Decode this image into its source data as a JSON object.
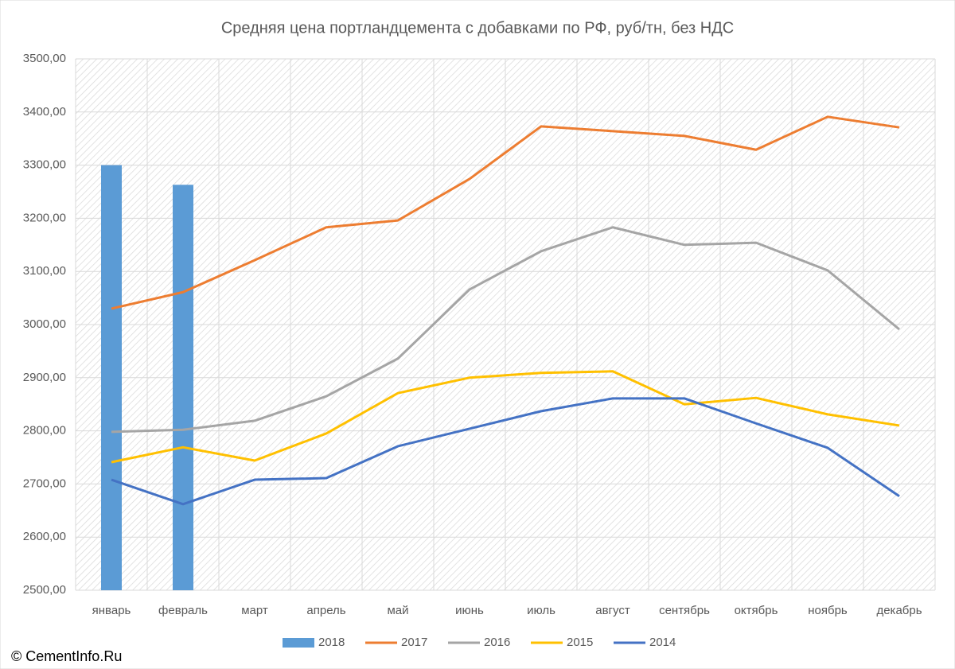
{
  "chart_data": {
    "type": "line",
    "title": "Средняя цена портландцемента с добавками по РФ, руб/тн, без НДС",
    "source": "© CementInfo.Ru",
    "categories": [
      "январь",
      "февраль",
      "март",
      "апрель",
      "май",
      "июнь",
      "июль",
      "август",
      "сентябрь",
      "октябрь",
      "ноябрь",
      "декабрь"
    ],
    "series": [
      {
        "name": "2018",
        "type": "bar",
        "color": "#5b9bd5",
        "values": [
          3300,
          3263,
          null,
          null,
          null,
          null,
          null,
          null,
          null,
          null,
          null,
          null
        ]
      },
      {
        "name": "2017",
        "color": "#ed7d31",
        "values": [
          3030,
          3061,
          3121,
          3183,
          3196,
          3274,
          3373,
          3364,
          3355,
          3329,
          3391,
          3371
        ]
      },
      {
        "name": "2016",
        "color": "#a5a5a5",
        "values": [
          2798,
          2802,
          2819,
          2865,
          2936,
          3066,
          3138,
          3183,
          3150,
          3154,
          3102,
          2991
        ]
      },
      {
        "name": "2015",
        "color": "#ffc000",
        "values": [
          2741,
          2769,
          2744,
          2795,
          2871,
          2900,
          2909,
          2912,
          2850,
          2862,
          2831,
          2810
        ]
      },
      {
        "name": "2014",
        "color": "#4472c4",
        "values": [
          2708,
          2662,
          2708,
          2711,
          2771,
          2804,
          2837,
          2861,
          2861,
          2814,
          2768,
          2677
        ]
      }
    ],
    "ylim": [
      2500,
      3500
    ],
    "yticks": [
      {
        "value": 2500,
        "label": "2500,00"
      },
      {
        "value": 2600,
        "label": "2600,00"
      },
      {
        "value": 2700,
        "label": "2700,00"
      },
      {
        "value": 2800,
        "label": "2800,00"
      },
      {
        "value": 2900,
        "label": "2900,00"
      },
      {
        "value": 3000,
        "label": "3000,00"
      },
      {
        "value": 3100,
        "label": "3100,00"
      },
      {
        "value": 3200,
        "label": "3200,00"
      },
      {
        "value": 3300,
        "label": "3300,00"
      },
      {
        "value": 3400,
        "label": "3400,00"
      },
      {
        "value": 3500,
        "label": "3500,00"
      }
    ],
    "grid": true,
    "legend": "bottom"
  }
}
